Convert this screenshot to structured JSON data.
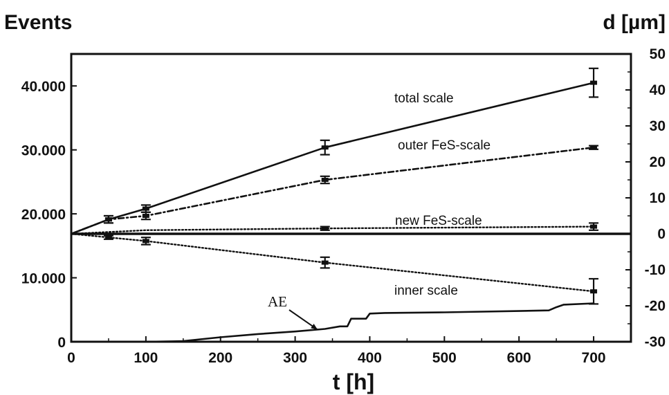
{
  "chart_data": {
    "type": "line",
    "title": "",
    "xlabel": "t [h]",
    "ylabel_left": "Events",
    "ylabel_right": "d [µm]",
    "xlim": [
      0,
      750
    ],
    "ylim_left": [
      0,
      45000
    ],
    "ylim_right": [
      -30,
      50
    ],
    "x_ticks": [
      "0",
      "100",
      "200",
      "300",
      "400",
      "500",
      "600",
      "700"
    ],
    "y_left_ticks": [
      {
        "value": 0,
        "label": "0"
      },
      {
        "value": 10000,
        "label": "10.000"
      },
      {
        "value": 20000,
        "label": "20.000"
      },
      {
        "value": 30000,
        "label": "30.000"
      },
      {
        "value": 40000,
        "label": "40.000"
      }
    ],
    "y_right_ticks": [
      {
        "value": 50,
        "label": "50"
      },
      {
        "value": 40,
        "label": "40"
      },
      {
        "value": 30,
        "label": "30"
      },
      {
        "value": 20,
        "label": "20"
      },
      {
        "value": 10,
        "label": "10"
      },
      {
        "value": 0,
        "label": "0"
      },
      {
        "value": -10,
        "label": "-10"
      },
      {
        "value": -20,
        "label": "-20"
      },
      {
        "value": -30,
        "label": "-30"
      }
    ],
    "grid": false,
    "legend": "none",
    "series": [
      {
        "name": "total scale",
        "axis": "right",
        "style": "solid",
        "x": [
          0,
          50,
          100,
          340,
          700
        ],
        "y": [
          0,
          4,
          7,
          24,
          42
        ],
        "error": [
          0,
          1,
          1,
          2,
          4
        ],
        "error_at": [
          50,
          100,
          340,
          700
        ]
      },
      {
        "name": "outer FeS-scale",
        "axis": "right",
        "style": "dashdot",
        "x": [
          0,
          50,
          100,
          340,
          700
        ],
        "y": [
          0,
          4,
          5,
          15,
          24
        ],
        "error": [
          0,
          1,
          1,
          1,
          0.5
        ],
        "error_at": [
          50,
          100,
          340,
          700
        ]
      },
      {
        "name": "new FeS-scale",
        "axis": "right",
        "style": "dotted",
        "x": [
          0,
          50,
          100,
          340,
          700
        ],
        "y": [
          0,
          0.5,
          1,
          1.5,
          2
        ],
        "error": [
          0,
          0.3,
          0.3,
          0.5,
          1
        ],
        "error_at": [
          340,
          700
        ]
      },
      {
        "name": "inner scale",
        "axis": "right",
        "style": "dotted",
        "x": [
          0,
          50,
          100,
          340,
          700
        ],
        "y": [
          0,
          -1,
          -2,
          -8,
          -16
        ],
        "error": [
          0,
          0.5,
          1,
          1.5,
          3.5
        ],
        "error_at": [
          50,
          100,
          340,
          700
        ]
      },
      {
        "name": "AE",
        "axis": "left",
        "style": "solid",
        "x": [
          0,
          100,
          150,
          200,
          250,
          300,
          340,
          360,
          370,
          375,
          395,
          400,
          420,
          500,
          600,
          640,
          650,
          660,
          700
        ],
        "y": [
          0,
          0,
          100,
          700,
          1200,
          1600,
          2000,
          2400,
          2400,
          3600,
          3600,
          4400,
          4500,
          4600,
          4800,
          4900,
          5400,
          5800,
          6000
        ]
      }
    ]
  }
}
